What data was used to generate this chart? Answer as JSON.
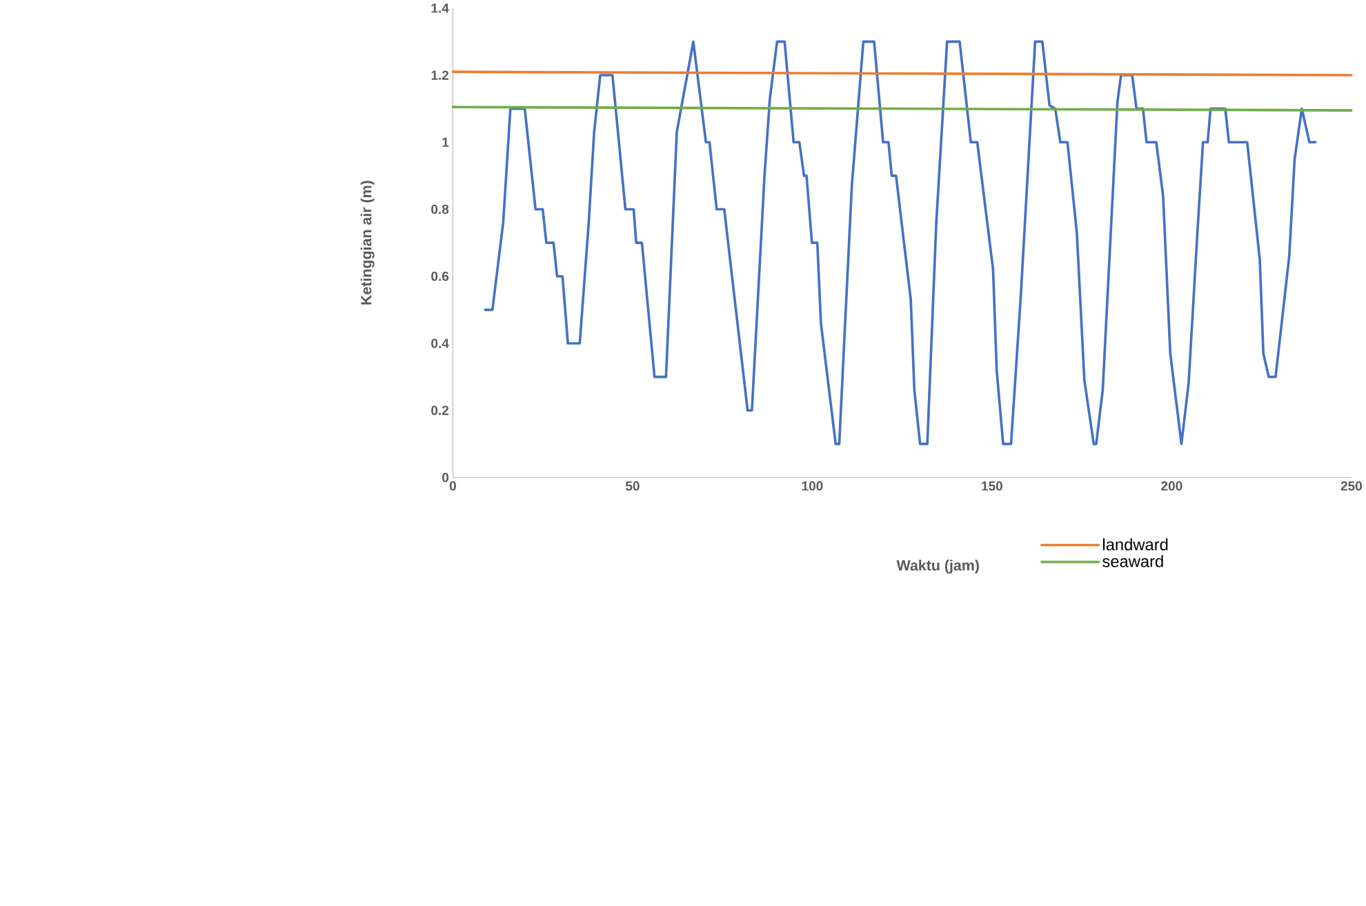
{
  "chart_data": {
    "type": "line",
    "xlabel": "Waktu (jam)",
    "ylabel": "Ketinggian air (m)",
    "xlim": [
      0,
      250
    ],
    "xticks": [
      0,
      50,
      100,
      150,
      200,
      250
    ],
    "ylim": [
      0,
      1.4
    ],
    "yticks": [
      0,
      0.2,
      0.4,
      0.6,
      0.8,
      1,
      1.2,
      1.4
    ],
    "legend": "bottom",
    "series": [
      {
        "color": "#4472c4",
        "x": [
          9,
          11,
          14,
          16,
          20,
          23,
          25,
          26,
          28,
          29,
          30.5,
          32,
          35.3,
          37.8,
          39.3,
          41,
          44.4,
          48,
          50.3,
          51,
          52.6,
          56.1,
          59.3,
          62.3,
          66.9,
          70.4,
          71.4,
          73.4,
          75.5,
          82,
          83.2,
          86.7,
          88.2,
          90.2,
          92.3,
          94.8,
          96.4,
          97.7,
          98.4,
          99.9,
          101.4,
          102.4,
          106.5,
          107.5,
          108.5,
          111,
          114.2,
          117.2,
          119.7,
          121.2,
          122.1,
          123.3,
          127.4,
          128.4,
          130,
          132,
          134.5,
          137.5,
          141,
          144.1,
          145.9,
          150.3,
          151.3,
          153.1,
          155.3,
          158,
          162,
          164,
          166,
          167.6,
          169,
          171,
          173.6,
          175.7,
          178.3,
          179,
          180.8,
          184.9,
          185.9,
          189,
          190.2,
          192,
          193,
          195.7,
          197.6,
          199.6,
          202.7,
          204.7,
          207.2,
          208.7,
          210,
          210.8,
          214.9,
          215.9,
          221,
          224.5,
          225.5,
          227,
          228.9,
          232.7,
          234.2,
          236.2,
          238.3,
          240
        ],
        "values": [
          0.5,
          0.5,
          0.76,
          1.1,
          1.1,
          0.8,
          0.8,
          0.7,
          0.7,
          0.6,
          0.6,
          0.4,
          0.4,
          0.76,
          1.03,
          1.2,
          1.2,
          0.8,
          0.8,
          0.7,
          0.7,
          0.3,
          0.3,
          1.03,
          1.3,
          1.0,
          1.0,
          0.8,
          0.8,
          0.2,
          0.2,
          0.9,
          1.13,
          1.3,
          1.3,
          1.0,
          1.0,
          0.9,
          0.9,
          0.7,
          0.7,
          0.46,
          0.1,
          0.1,
          0.32,
          0.87,
          1.3,
          1.3,
          1.0,
          1.0,
          0.9,
          0.9,
          0.53,
          0.26,
          0.1,
          0.1,
          0.76,
          1.3,
          1.3,
          1.0,
          1.0,
          0.62,
          0.32,
          0.1,
          0.1,
          0.54,
          1.3,
          1.3,
          1.11,
          1.1,
          1.0,
          1.0,
          0.73,
          0.29,
          0.1,
          0.1,
          0.26,
          1.12,
          1.2,
          1.2,
          1.1,
          1.1,
          1.0,
          1.0,
          0.84,
          0.37,
          0.1,
          0.28,
          0.74,
          1.0,
          1.0,
          1.1,
          1.1,
          1.0,
          1.0,
          0.65,
          0.37,
          0.3,
          0.3,
          0.66,
          0.95,
          1.1,
          1.0,
          1.0
        ]
      },
      {
        "name": "landward",
        "color": "#ed7d31",
        "x": [
          0,
          250
        ],
        "values": [
          1.21,
          1.2
        ]
      },
      {
        "name": "seaward",
        "color": "#70ad47",
        "x": [
          0,
          250
        ],
        "values": [
          1.105,
          1.095
        ]
      }
    ]
  }
}
